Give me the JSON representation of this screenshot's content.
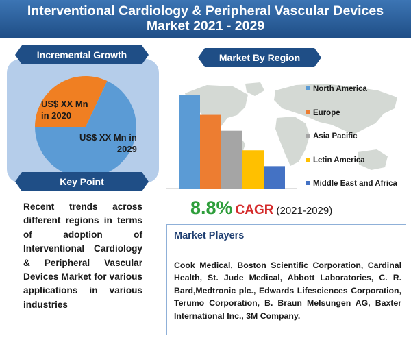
{
  "header": {
    "title_line1": "Interventional Cardiology & Peripheral Vascular Devices",
    "title_line2": "Market 2021 - 2029"
  },
  "incremental_growth": {
    "heading": "Incremental Growth",
    "label_2020_line1": "US$ XX Mn",
    "label_2020_line2": "in 2020",
    "label_2029_line1": "US$ XX Mn in",
    "label_2029_line2": "2029",
    "colors": {
      "2020": "#f07f22",
      "2029": "#5b9bd5"
    }
  },
  "key_point": {
    "heading": "Key Point",
    "text": "Recent trends across different regions in terms of adoption of Interventional Cardiology & Peripheral Vascular Devices Market for various applications in various industries"
  },
  "market_by_region": {
    "heading": "Market By Region"
  },
  "chart_data": [
    {
      "type": "pie",
      "labels": [
        "US$ XX Mn in 2020",
        "US$ XX Mn in 2029"
      ],
      "values": [
        32,
        68
      ]
    },
    {
      "type": "bar",
      "categories": [
        "North America",
        "Europe",
        "Asia Pacific",
        "Letin America",
        "Middle East and Africa"
      ],
      "values": [
        100,
        79,
        62,
        41,
        24
      ],
      "colors": [
        "#5b9bd5",
        "#ed7d31",
        "#a5a5a5",
        "#ffc000",
        "#4472c4"
      ],
      "legend_position": "right",
      "grid": false
    }
  ],
  "cagr": {
    "value": "8.8%",
    "label": "CAGR",
    "period": "(2021-2029)"
  },
  "market_players": {
    "heading": "Market Players",
    "text": "Cook Medical, Boston Scientific Corporation, Cardinal Health, St. Jude Medical, Abbott Laboratories, C. R. Bard,Medtronic plc., Edwards Lifesciences Corporation, Terumo Corporation, B. Braun Melsungen AG, Baxter International Inc., 3M Company."
  }
}
